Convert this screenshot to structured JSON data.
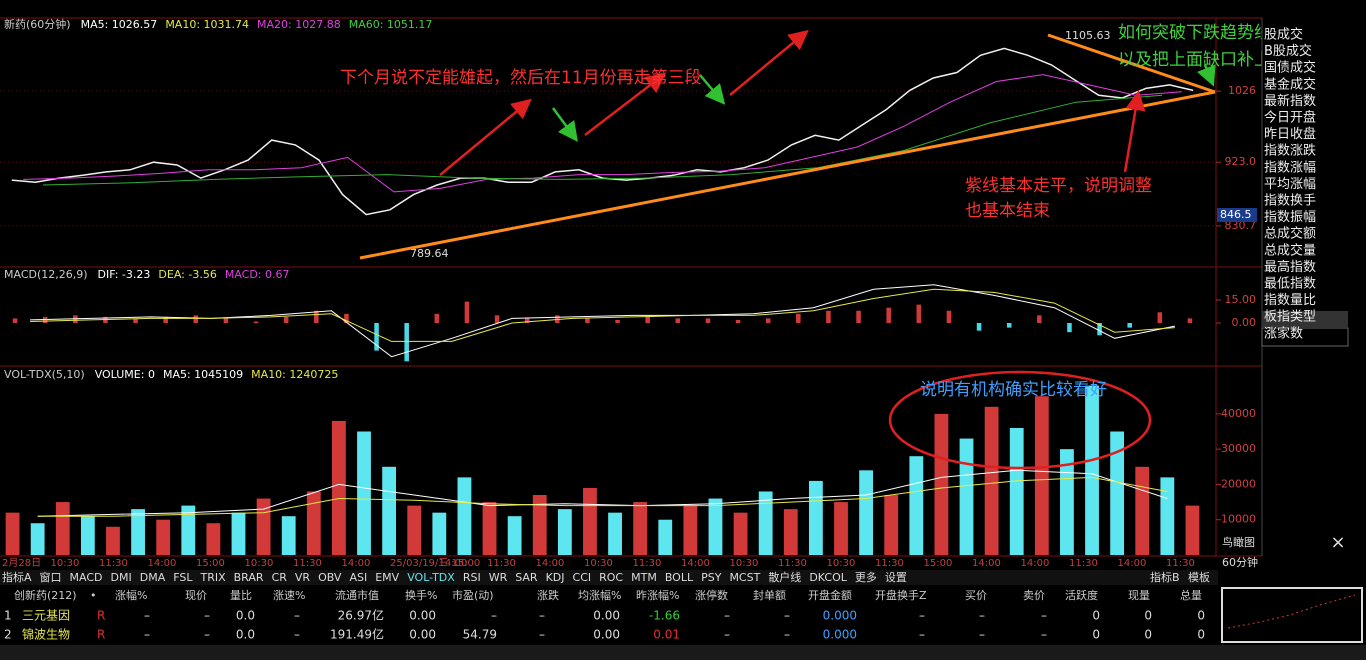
{
  "chart_data": [
    {
      "type": "line",
      "title": "新药(60分钟)",
      "header_items": [
        {
          "text": "MA5: 1026.57",
          "color": "#ffffff"
        },
        {
          "text": "MA10: 1031.74",
          "color": "#e8e84a"
        },
        {
          "text": "MA20: 1027.88",
          "color": "#e040e0"
        },
        {
          "text": "MA60: 1051.17",
          "color": "#40d040"
        }
      ],
      "ylim": [
        774,
        1132
      ],
      "yticks": [
        830.7,
        {
          "value": 923,
          "label": "923.0"
        },
        1026
      ],
      "marker": 846.5,
      "high_label": 1105.63,
      "low_label": 789.64,
      "series": [
        {
          "color": "#f0f0f0",
          "values": [
            897,
            894,
            900,
            904,
            909,
            912,
            923,
            919,
            900,
            912,
            926,
            955,
            948,
            926,
            876,
            847,
            854,
            876,
            890,
            900,
            900,
            894,
            894,
            909,
            912,
            900,
            897,
            900,
            904,
            912,
            909,
            915,
            926,
            948,
            962,
            955,
            977,
            999,
            1027,
            1045,
            1053,
            1078,
            1088,
            1078,
            1064,
            1042,
            1020,
            1016,
            1030,
            1035,
            1027
          ]
        },
        {
          "color": "#e040e0",
          "values": [
            898,
            900,
            903,
            907,
            912,
            912,
            915,
            930,
            880,
            885,
            898,
            900,
            905,
            905,
            908,
            910,
            915,
            930,
            945,
            975,
            1010,
            1040,
            1050,
            1035,
            1020,
            1025
          ]
        },
        {
          "color": "#30b030",
          "values": [
            890,
            893,
            898,
            902,
            905,
            900,
            898,
            900,
            905,
            915,
            940,
            980,
            1010,
            1020
          ]
        }
      ]
    },
    {
      "type": "bar",
      "title": "MACD(12,26,9)",
      "header_items": [
        {
          "text": "DIF: -3.23",
          "color": "#ffffff"
        },
        {
          "text": "DEA: -3.56",
          "color": "#e8e84a"
        },
        {
          "text": "MACD: 0.67",
          "color": "#e040e0"
        }
      ],
      "ylim": [
        -27.4,
        35.9
      ],
      "yticks": [
        {
          "value": 15,
          "label": "15.00"
        },
        {
          "value": 0,
          "label": "0.00"
        }
      ],
      "series": [
        {
          "type": "bar",
          "pos_color": "#d23a3a",
          "neg_color": "#4ad8e8",
          "values": [
            3,
            4,
            5,
            4,
            3,
            4,
            5,
            3,
            1,
            4,
            8,
            6,
            -18,
            -25,
            6,
            14,
            5,
            3,
            5,
            3,
            2,
            4,
            3,
            3,
            2,
            3,
            6,
            8,
            8,
            10,
            12,
            8,
            -5,
            -3,
            5,
            -6,
            -8,
            -3,
            7,
            3
          ]
        },
        {
          "type": "line",
          "color": "#ffffff",
          "values": [
            2,
            3,
            4,
            3,
            5,
            8,
            -22,
            -10,
            3,
            4,
            5,
            5,
            6,
            10,
            22,
            25,
            18,
            10,
            -10,
            -2
          ]
        },
        {
          "type": "line",
          "color": "#e8e84a",
          "values": [
            1,
            2,
            3,
            3,
            4,
            6,
            -12,
            -12,
            0,
            3,
            4,
            5,
            5,
            8,
            16,
            22,
            20,
            13,
            -6,
            -3
          ]
        }
      ]
    },
    {
      "type": "bar",
      "title": "VOL-TDX(5,10)",
      "header_items": [
        {
          "text": "VOLUME: 0",
          "color": "#ffffff"
        },
        {
          "text": "MA5: 1045109",
          "color": "#ffffff"
        },
        {
          "text": "MA10: 1240725",
          "color": "#e8e84a"
        }
      ],
      "ylim": [
        0,
        53000
      ],
      "yticks": [
        10000,
        20000,
        30000,
        40000
      ],
      "series": [
        {
          "type": "bar",
          "colors": [
            "#d23a3a",
            "#5ee6f0",
            "#d23a3a",
            "#5ee6f0",
            "#d23a3a",
            "#5ee6f0",
            "#d23a3a",
            "#5ee6f0",
            "#d23a3a",
            "#5ee6f0",
            "#d23a3a",
            "#5ee6f0",
            "#d23a3a",
            "#d23a3a",
            "#5ee6f0",
            "#5ee6f0",
            "#d23a3a",
            "#5ee6f0",
            "#5ee6f0",
            "#d23a3a",
            "#5ee6f0",
            "#d23a3a",
            "#5ee6f0",
            "#d23a3a",
            "#5ee6f0",
            "#d23a3a",
            "#5ee6f0",
            "#d23a3a",
            "#5ee6f0",
            "#d23a3a",
            "#5ee6f0",
            "#d23a3a",
            "#5ee6f0",
            "#d23a3a",
            "#5ee6f0",
            "#d23a3a",
            "#5ee6f0",
            "#d23a3a",
            "#5ee6f0",
            "#d23a3a",
            "#5ee6f0",
            "#d23a3a",
            "#5ee6f0",
            "#5ee6f0",
            "#5ee6f0",
            "#d23a3a",
            "#5ee6f0",
            "#d23a3a"
          ],
          "values": [
            12000,
            9000,
            15000,
            11000,
            8000,
            13000,
            10000,
            14000,
            9000,
            12000,
            16000,
            11000,
            18000,
            38000,
            35000,
            25000,
            14000,
            12000,
            22000,
            15000,
            11000,
            17000,
            13000,
            19000,
            12000,
            15000,
            10000,
            14000,
            16000,
            12000,
            18000,
            13000,
            21000,
            15000,
            24000,
            17000,
            28000,
            40000,
            33000,
            42000,
            36000,
            45000,
            30000,
            48000,
            35000,
            25000,
            22000,
            14000
          ]
        },
        {
          "type": "line",
          "color": "#ffffff",
          "values": [
            11000,
            11500,
            12000,
            13000,
            20000,
            17000,
            14000,
            14500,
            14000,
            14500,
            16000,
            17000,
            22000,
            24000,
            23000,
            16000
          ]
        },
        {
          "type": "line",
          "color": "#e8e84a",
          "values": [
            11000,
            11000,
            11500,
            12000,
            16000,
            15500,
            14500,
            14000,
            14000,
            14000,
            15000,
            16000,
            19000,
            21000,
            22000,
            18000
          ]
        }
      ]
    }
  ],
  "annotations": {
    "main": "下个月说不定能雄起，然后在11月份再走第三段",
    "break1": "如何突破下跌趋势线",
    "break2": "以及把上面缺口补上",
    "purple1": "紫线基本走平，说明调整",
    "purple2": "也基本结束",
    "volume": "说明有机构确实比较看好"
  },
  "sidebar": [
    "股成交",
    "B股成交",
    "国债成交",
    "基金成交",
    "最新指数",
    "今日开盘",
    "昨日收盘",
    "指数涨跌",
    "指数涨幅",
    "平均涨幅",
    "指数换手",
    "指数振幅",
    "总成交额",
    "总成交量",
    "最高指数",
    "最低指数",
    "指数量比",
    "板指类型",
    "涨家数"
  ],
  "time_axis": [
    "2月28日",
    "10:30",
    "11:30",
    "14:00",
    "15:00",
    "10:30",
    "11:30",
    "14:00",
    "25/03/19/三 15:00",
    "14:00",
    "11:30",
    "14:00",
    "10:30",
    "11:30",
    "14:00",
    "10:30",
    "11:30",
    "10:30",
    "11:30",
    "15:00",
    "14:00",
    "14:00",
    "11:30",
    "14:00",
    "11:30"
  ],
  "period": "60分钟",
  "minimap_label": "鸟瞰图",
  "tabs": [
    "指标A",
    "窗口",
    "MACD",
    "DMI",
    "DMA",
    "FSL",
    "TRIX",
    "BRAR",
    "CR",
    "VR",
    "OBV",
    "ASI",
    "EMV",
    "VOL-TDX",
    "RSI",
    "WR",
    "SAR",
    "KDJ",
    "CCI",
    "ROC",
    "MTM",
    "BOLL",
    "PSY",
    "MCST",
    "散户线",
    "DKCOL",
    "更多",
    "设置"
  ],
  "tabs_right": [
    "指标B",
    "模板"
  ],
  "table": {
    "headers": [
      "创新药(212)",
      "•",
      "涨幅%",
      "现价",
      "量比",
      "涨速%",
      "流通市值",
      "换手%",
      "市盈(动)",
      "涨跌",
      "均涨幅%",
      "昨涨幅%",
      "涨停数",
      "封单额",
      "开盘金额",
      "开盘换手Z",
      "买价",
      "卖价",
      "活跃度",
      "现量",
      "总量"
    ],
    "rows": [
      [
        "1",
        "三元基因",
        "R",
        "–",
        "–",
        "0.0",
        "–",
        "26.97亿",
        "0.00",
        "–",
        "–",
        "0.00",
        "-1.66",
        "–",
        "–",
        "0.000",
        "–",
        "–",
        "–",
        "0",
        "0",
        "0"
      ],
      [
        "2",
        "锦波生物",
        "R",
        "–",
        "–",
        "0.0",
        "–",
        "191.49亿",
        "0.00",
        "54.79",
        "–",
        "0.00",
        "0.01",
        "–",
        "–",
        "0.000",
        "–",
        "–",
        "–",
        "0",
        "0",
        "0"
      ]
    ]
  }
}
